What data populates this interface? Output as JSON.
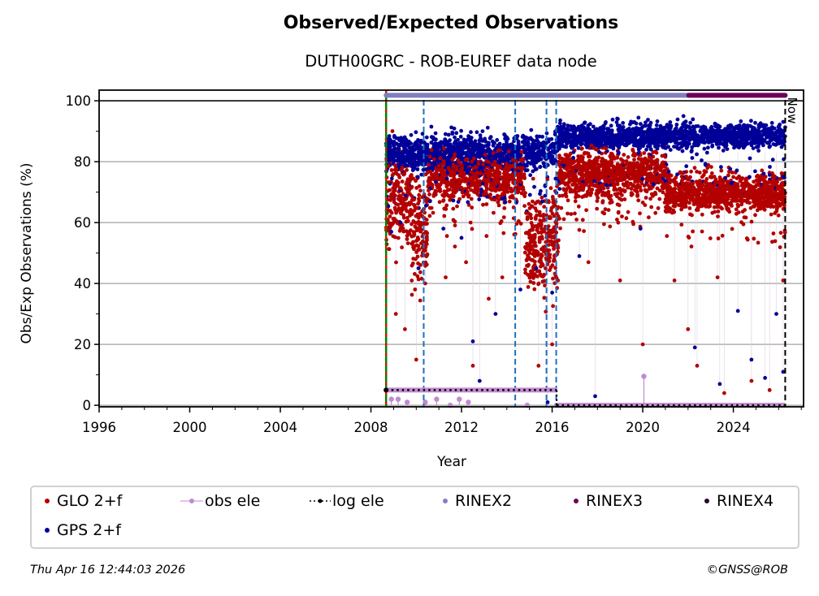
{
  "chart_data": {
    "type": "scatter",
    "title": "Observed/Expected Observations",
    "subtitle": "DUTH00GRC - ROB-EUREF data node",
    "xlabel": "Year",
    "ylabel": "Obs/Exp Observations (%)",
    "xlim": [
      1996,
      2027.1
    ],
    "ylim": [
      -0.5,
      103.5
    ],
    "xticks": [
      "1996",
      "2000",
      "2004",
      "2008",
      "2012",
      "2016",
      "2020",
      "2024"
    ],
    "xtick_values": [
      1996,
      2000,
      2004,
      2008,
      2012,
      2016,
      2020,
      2024
    ],
    "yticks": [
      "0",
      "20",
      "40",
      "60",
      "80",
      "100"
    ],
    "ytick_values": [
      0,
      20,
      40,
      60,
      80,
      100
    ],
    "grid": "horizontal",
    "now_label": "Now",
    "now_year": 2026.29,
    "series": [
      {
        "name": "GPS 2+f",
        "color": "#000099",
        "kind": "scatter",
        "typical_band": [
          {
            "x_start": 2008.67,
            "x_end": 2016.2,
            "y_center": 83,
            "y_spread": 3
          },
          {
            "x_start": 2016.2,
            "x_end": 2026.29,
            "y_center": 88.5,
            "y_spread": 2
          }
        ],
        "outliers": [
          [
            2008.9,
            57
          ],
          [
            2009.3,
            60
          ],
          [
            2010.1,
            45
          ],
          [
            2010.6,
            67
          ],
          [
            2011.2,
            58
          ],
          [
            2012.0,
            55
          ],
          [
            2012.5,
            21
          ],
          [
            2012.8,
            8
          ],
          [
            2013.5,
            30
          ],
          [
            2014.6,
            38
          ],
          [
            2015.3,
            45
          ],
          [
            2015.8,
            1
          ],
          [
            2016.0,
            37
          ],
          [
            2017.2,
            49
          ],
          [
            2017.9,
            3
          ],
          [
            2018.9,
            94
          ],
          [
            2019.9,
            58
          ],
          [
            2021.8,
            95
          ],
          [
            2022.3,
            19
          ],
          [
            2023.4,
            7
          ],
          [
            2024.2,
            31
          ],
          [
            2024.8,
            15
          ],
          [
            2025.4,
            9
          ],
          [
            2025.9,
            30
          ],
          [
            2026.2,
            11
          ]
        ]
      },
      {
        "name": "GLO 2+f",
        "color": "#b30000",
        "kind": "scatter",
        "typical_band": [
          {
            "x_start": 2008.67,
            "x_end": 2009.8,
            "y_center": 68,
            "y_spread": 8
          },
          {
            "x_start": 2009.8,
            "x_end": 2010.5,
            "y_center": 58,
            "y_spread": 8
          },
          {
            "x_start": 2010.5,
            "x_end": 2014.8,
            "y_center": 75,
            "y_spread": 4
          },
          {
            "x_start": 2014.8,
            "x_end": 2016.3,
            "y_center": 55,
            "y_spread": 8
          },
          {
            "x_start": 2016.3,
            "x_end": 2021.0,
            "y_center": 76,
            "y_spread": 4
          },
          {
            "x_start": 2021.0,
            "x_end": 2026.29,
            "y_center": 70,
            "y_spread": 3
          }
        ],
        "outliers": [
          [
            2009.1,
            30
          ],
          [
            2009.5,
            25
          ],
          [
            2010.0,
            15
          ],
          [
            2010.4,
            40
          ],
          [
            2011.3,
            42
          ],
          [
            2012.2,
            47
          ],
          [
            2012.5,
            13
          ],
          [
            2013.2,
            35
          ],
          [
            2013.8,
            42
          ],
          [
            2014.3,
            65
          ],
          [
            2015.4,
            13
          ],
          [
            2016.0,
            20
          ],
          [
            2017.0,
            63
          ],
          [
            2017.6,
            47
          ],
          [
            2018.3,
            63
          ],
          [
            2019.0,
            41
          ],
          [
            2020.0,
            20
          ],
          [
            2021.4,
            41
          ],
          [
            2022.0,
            25
          ],
          [
            2022.4,
            13
          ],
          [
            2023.3,
            42
          ],
          [
            2023.6,
            4
          ],
          [
            2024.8,
            8
          ],
          [
            2025.6,
            5
          ],
          [
            2026.2,
            41
          ]
        ]
      },
      {
        "name": "obs ele",
        "color": "#c08ad0",
        "kind": "stem",
        "points": [
          [
            2008.67,
            5
          ],
          [
            2008.9,
            2
          ],
          [
            2009.2,
            2
          ],
          [
            2009.6,
            1
          ],
          [
            2010.4,
            1
          ],
          [
            2010.9,
            2
          ],
          [
            2011.5,
            0
          ],
          [
            2011.9,
            2
          ],
          [
            2012.3,
            1
          ],
          [
            2014.9,
            0
          ],
          [
            2016.2,
            0
          ],
          [
            2020.05,
            9.5
          ]
        ]
      },
      {
        "name": "log ele",
        "color": "#000000",
        "kind": "step",
        "segments": [
          {
            "x_start": 2008.67,
            "x_end": 2016.2,
            "y": 5
          },
          {
            "x_start": 2016.2,
            "x_end": 2026.29,
            "y": 0
          }
        ]
      },
      {
        "name": "RINEX2",
        "color": "#8080c0",
        "kind": "bar-span",
        "x_start": 2008.67,
        "x_end": 2022.03,
        "y": 101.8
      },
      {
        "name": "RINEX3",
        "color": "#6b005c",
        "kind": "bar-span",
        "x_start": 2022.03,
        "x_end": 2026.29,
        "y": 101.8
      },
      {
        "name": "RINEX4",
        "color": "#2a0a2a",
        "kind": "bar-span",
        "x_start": null,
        "x_end": null,
        "y": 101.8
      }
    ],
    "vertical_markers": [
      {
        "x": 2008.67,
        "style": "dashed",
        "colors": [
          "#008000",
          "#ff0000"
        ]
      },
      {
        "x": 2010.33,
        "style": "dashed",
        "colors": [
          "#1f6fbf"
        ]
      },
      {
        "x": 2014.37,
        "style": "dashed",
        "colors": [
          "#1f6fbf"
        ]
      },
      {
        "x": 2015.75,
        "style": "dashed",
        "colors": [
          "#1f6fbf"
        ]
      },
      {
        "x": 2016.18,
        "style": "dashed",
        "colors": [
          "#1f6fbf"
        ]
      },
      {
        "x": 2026.29,
        "style": "dashed",
        "colors": [
          "#000000"
        ]
      }
    ],
    "legend": {
      "placement": "bottom",
      "entries": [
        "GLO 2+f",
        "obs ele",
        "log ele",
        "RINEX2",
        "RINEX3",
        "RINEX4",
        "GPS 2+f"
      ]
    }
  },
  "footer": {
    "timestamp": "Thu Apr 16 12:44:03 2026",
    "copyright": "©GNSS@ROB"
  }
}
